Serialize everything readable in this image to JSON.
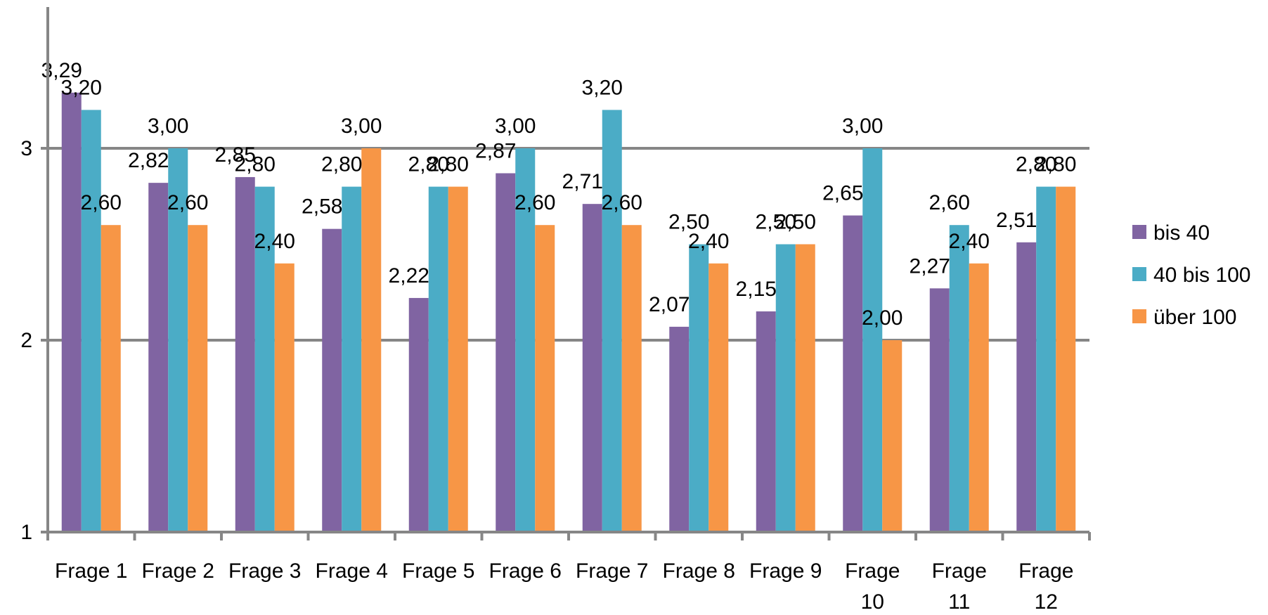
{
  "chart_data": {
    "type": "bar",
    "title": "",
    "xlabel": "",
    "ylabel": "",
    "ylim": [
      1,
      3.75
    ],
    "yticks": [
      1,
      2,
      3
    ],
    "grid": true,
    "legend_position": "right",
    "categories": [
      [
        "Frage 1"
      ],
      [
        "Frage 2"
      ],
      [
        "Frage 3"
      ],
      [
        "Frage 4"
      ],
      [
        "Frage 5"
      ],
      [
        "Frage 6"
      ],
      [
        "Frage 7"
      ],
      [
        "Frage 8"
      ],
      [
        "Frage 9"
      ],
      [
        "Frage",
        "10"
      ],
      [
        "Frage",
        "11"
      ],
      [
        "Frage",
        "12"
      ]
    ],
    "series": [
      {
        "name": "bis 40",
        "color": "#8064a2",
        "values": [
          3.29,
          2.82,
          2.85,
          2.58,
          2.22,
          2.87,
          2.71,
          2.07,
          2.15,
          2.65,
          2.27,
          2.51
        ],
        "labels": [
          "3,29",
          "2,82",
          "2,85",
          "2,58",
          "2,22",
          "2,87",
          "2,71",
          "2,07",
          "2,15",
          "2,65",
          "2,27",
          "2,51"
        ]
      },
      {
        "name": "40 bis 100",
        "color": "#4bacc6",
        "values": [
          3.2,
          3.0,
          2.8,
          2.8,
          2.8,
          3.0,
          3.2,
          2.5,
          2.5,
          3.0,
          2.6,
          2.8
        ],
        "labels": [
          "3,20",
          "3,00",
          "2,80",
          "2,80",
          "2,80",
          "3,00",
          "3,20",
          "2,50",
          "2,50",
          "3,00",
          "2,60",
          "2,80"
        ]
      },
      {
        "name": "über 100",
        "color": "#f79646",
        "values": [
          2.6,
          2.6,
          2.4,
          3.0,
          2.8,
          2.6,
          2.6,
          2.4,
          2.5,
          2.0,
          2.4,
          2.8
        ],
        "labels": [
          "2,60",
          "2,60",
          "2,40",
          "3,00",
          "2,80",
          "2,60",
          "2,60",
          "2,40",
          "2,50",
          "2,00",
          "2,40",
          "2,80"
        ]
      }
    ]
  }
}
